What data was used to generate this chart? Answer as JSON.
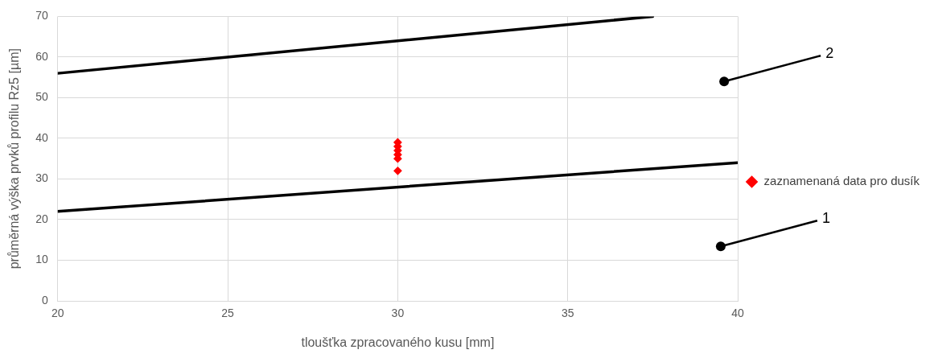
{
  "chart_data": {
    "type": "line",
    "xlabel": "tloušťka zpracovaného kusu [mm]",
    "ylabel": "průměrná výška prvků profilu Rz5 [µm]",
    "xlim": [
      20,
      40
    ],
    "xticks": [
      20,
      25,
      30,
      35,
      40
    ],
    "ylim": [
      0,
      70
    ],
    "yticks": [
      0,
      10,
      20,
      30,
      40,
      50,
      60,
      70
    ],
    "grid": true,
    "legend": "right",
    "series": [
      {
        "color": "#000000",
        "x": [
          20,
          37.5
        ],
        "values": [
          56,
          70
        ],
        "marker": "none"
      },
      {
        "color": "#000000",
        "x": [
          20,
          40
        ],
        "values": [
          22,
          34
        ],
        "marker": "none"
      },
      {
        "name": "zaznamenaná data pro dusík",
        "type": "scatter",
        "color": "#ff0000",
        "x": [
          30,
          30,
          30,
          30,
          30,
          30
        ],
        "values": [
          39,
          38,
          37,
          36,
          35,
          32
        ],
        "marker": "diamond"
      }
    ],
    "annotations": [
      {
        "text": "2",
        "x": 39.6,
        "y": 54
      },
      {
        "text": "1",
        "x": 39.5,
        "y": 13.4
      }
    ]
  }
}
